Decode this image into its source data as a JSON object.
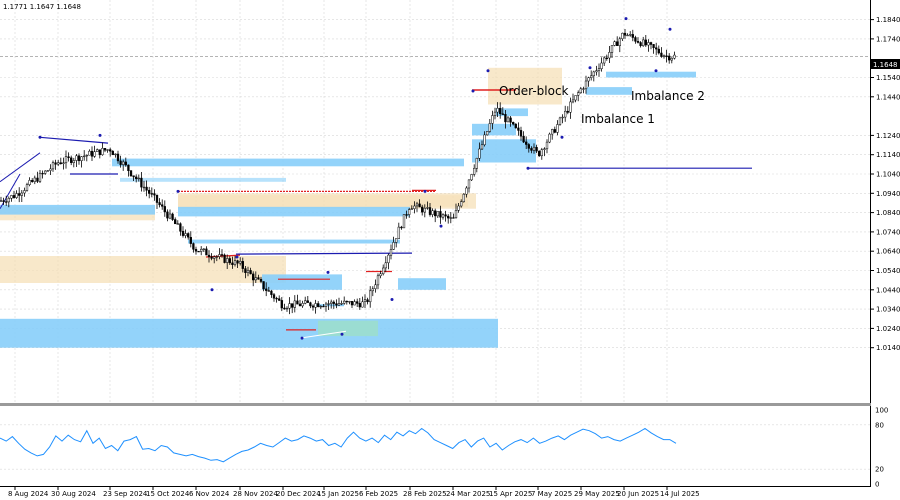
{
  "header": {
    "ohlc_text": "1.1771 1.1647 1.1648"
  },
  "price_axis": {
    "ticks": [
      "1.1840",
      "1.1740",
      "1.1648",
      "1.1540",
      "1.1440",
      "1.1240",
      "1.1140",
      "1.1040",
      "1.0940",
      "1.0840",
      "1.0740",
      "1.0640",
      "1.0540",
      "1.0440",
      "1.0340",
      "1.0240",
      "1.0140"
    ],
    "current_label": "1.1648"
  },
  "osc_axis": {
    "ticks": [
      "100",
      "80",
      "20",
      "0"
    ]
  },
  "time_axis": {
    "ticks": [
      "8 Aug 2024",
      "30 Aug 2024",
      "23 Sep 2024",
      "15 Oct 2024",
      "6 Nov 2024",
      "28 Nov 2024",
      "20 Dec 2024",
      "15 Jan 2025",
      "6 Feb 2025",
      "28 Feb 2025",
      "24 Mar 2025",
      "15 Apr 2025",
      "7 May 2025",
      "29 May 2025",
      "20 Jun 2025",
      "14 Jul 2025"
    ]
  },
  "annotations": {
    "order_block": "Order-block",
    "imbalance_1": "Imbalance 1",
    "imbalance_2": "Imbalance 2"
  },
  "colors": {
    "zone_blue": "#87CEFA",
    "zone_sand": "#F5DEB3",
    "line_navy": "#1C1CB0",
    "line_red": "#E02020",
    "line_blue": "#1E90FF",
    "candle": "#000000",
    "grid": "#D8D8D8"
  },
  "chart_data": {
    "type": "line",
    "title": "",
    "xlabel": "",
    "ylabel": "",
    "ylim": [
      1.0125,
      1.1875
    ],
    "x": [
      "2024-08-08",
      "2024-08-30",
      "2024-09-23",
      "2024-10-15",
      "2024-11-06",
      "2024-11-28",
      "2024-12-20",
      "2025-01-15",
      "2025-02-06",
      "2025-02-28",
      "2025-03-24",
      "2025-04-15",
      "2025-05-07",
      "2025-05-29",
      "2025-06-20",
      "2025-07-14"
    ],
    "series": [
      {
        "values": [
          1.093,
          1.11,
          1.117,
          1.092,
          1.065,
          1.057,
          1.036,
          1.037,
          1.037,
          1.088,
          1.08,
          1.138,
          1.114,
          1.148,
          1.177,
          1.165
        ]
      }
    ],
    "oscillator": {
      "ylim": [
        0,
        100
      ],
      "values": [
        62,
        58,
        64,
        55,
        47,
        42,
        38,
        40,
        50,
        65,
        58,
        66,
        60,
        57,
        72,
        55,
        62,
        48,
        52,
        45,
        58,
        60,
        64,
        47,
        48,
        45,
        52,
        50,
        42,
        40,
        38,
        40,
        37,
        35,
        32,
        33,
        30,
        35,
        40,
        44,
        46,
        50,
        55,
        52,
        50,
        56,
        62,
        58,
        60,
        65,
        62,
        58,
        60,
        52,
        55,
        50,
        62,
        70,
        62,
        58,
        62,
        56,
        66,
        60,
        70,
        65,
        72,
        68,
        75,
        69,
        60,
        56,
        52,
        48,
        56,
        60,
        50,
        58,
        62,
        50,
        55,
        46,
        52,
        57,
        60,
        56,
        62,
        55,
        58,
        62,
        65,
        60,
        66,
        70,
        74,
        72,
        68,
        62,
        64,
        60,
        58,
        62,
        66,
        70,
        75,
        69,
        64,
        60,
        60,
        55
      ]
    }
  }
}
